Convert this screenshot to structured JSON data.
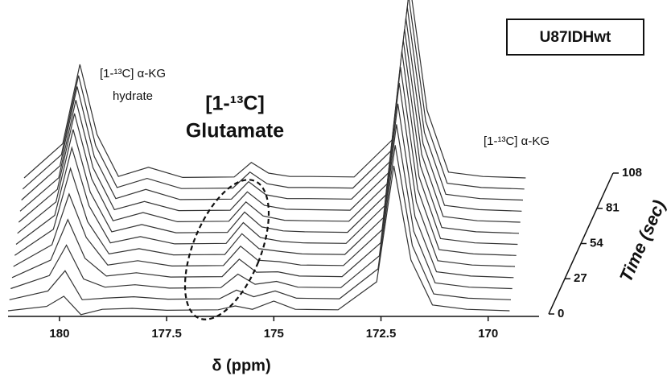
{
  "chart_data": {
    "type": "waterfall",
    "xlabel": "δ (ppm)",
    "zlabel": "Time (sec)",
    "box_label": "U87IDHwt",
    "annotations": [
      {
        "lines": [
          "[1-¹³C] α-KG",
          "hydrate"
        ]
      },
      {
        "lines": [
          "[1-¹³C]",
          "Glutamate"
        ]
      },
      {
        "lines": [
          "[1-¹³C] α-KG"
        ]
      }
    ],
    "xlim": [
      181.2,
      169.0
    ],
    "xticks": [
      180,
      177.5,
      175,
      172.5,
      170
    ],
    "zlim": [
      0,
      108
    ],
    "zticks": [
      0,
      27,
      54,
      81,
      108
    ],
    "color": "#333333",
    "x": [
      181.2,
      180.3,
      179.9,
      179.5,
      179.0,
      178.3,
      177.5,
      176.3,
      175.9,
      175.5,
      175.0,
      174.5,
      173.5,
      172.6,
      172.2,
      171.8,
      171.3,
      170.5,
      169.5
    ],
    "series": [
      {
        "time": 0,
        "values": [
          0,
          9,
          30,
          -8,
          3,
          5,
          1,
          2,
          10,
          3,
          20,
          3,
          2,
          60,
          300,
          105,
          12,
          3,
          0
        ]
      },
      {
        "time": 9,
        "values": [
          0,
          18,
          60,
          0,
          3,
          6,
          1,
          2,
          20,
          6,
          18,
          3,
          2,
          64,
          320,
          112,
          12,
          3,
          0
        ]
      },
      {
        "time": 18,
        "values": [
          0,
          27,
          90,
          20,
          3,
          8,
          1,
          2,
          30,
          9,
          15,
          3,
          2,
          68,
          340,
          119,
          12,
          3,
          0
        ]
      },
      {
        "time": 27,
        "values": [
          0,
          36,
          120,
          40,
          3,
          10,
          1,
          2,
          38,
          11,
          12,
          3,
          2,
          72,
          360,
          126,
          12,
          3,
          0
        ]
      },
      {
        "time": 36,
        "values": [
          0,
          45,
          150,
          60,
          3,
          12,
          1,
          2,
          42,
          13,
          10,
          3,
          2,
          76,
          380,
          133,
          12,
          3,
          0
        ]
      },
      {
        "time": 45,
        "values": [
          0,
          54,
          180,
          70,
          3,
          14,
          1,
          2,
          45,
          14,
          8,
          3,
          2,
          78,
          390,
          137,
          12,
          3,
          0
        ]
      },
      {
        "time": 54,
        "values": [
          0,
          60,
          200,
          80,
          3,
          16,
          1,
          2,
          45,
          14,
          6,
          3,
          2,
          80,
          400,
          140,
          12,
          3,
          0
        ]
      },
      {
        "time": 63,
        "values": [
          0,
          65,
          215,
          85,
          3,
          18,
          1,
          2,
          44,
          13,
          5,
          3,
          2,
          80,
          400,
          140,
          12,
          3,
          0
        ]
      },
      {
        "time": 72,
        "values": [
          0,
          68,
          225,
          90,
          3,
          20,
          1,
          2,
          42,
          13,
          4,
          3,
          2,
          80,
          400,
          140,
          12,
          3,
          0
        ]
      },
      {
        "time": 81,
        "values": [
          0,
          69,
          230,
          90,
          3,
          20,
          1,
          2,
          40,
          12,
          4,
          3,
          2,
          80,
          400,
          140,
          12,
          3,
          0
        ]
      },
      {
        "time": 90,
        "values": [
          0,
          71,
          235,
          90,
          3,
          22,
          1,
          2,
          38,
          11,
          3,
          3,
          2,
          80,
          400,
          140,
          12,
          3,
          0
        ]
      },
      {
        "time": 99,
        "values": [
          0,
          71,
          235,
          90,
          3,
          22,
          1,
          2,
          35,
          11,
          3,
          3,
          2,
          80,
          400,
          140,
          12,
          3,
          0
        ]
      },
      {
        "time": 108,
        "values": [
          0,
          71,
          235,
          90,
          3,
          22,
          1,
          2,
          32,
          10,
          3,
          3,
          2,
          80,
          400,
          140,
          12,
          3,
          0
        ]
      }
    ]
  }
}
